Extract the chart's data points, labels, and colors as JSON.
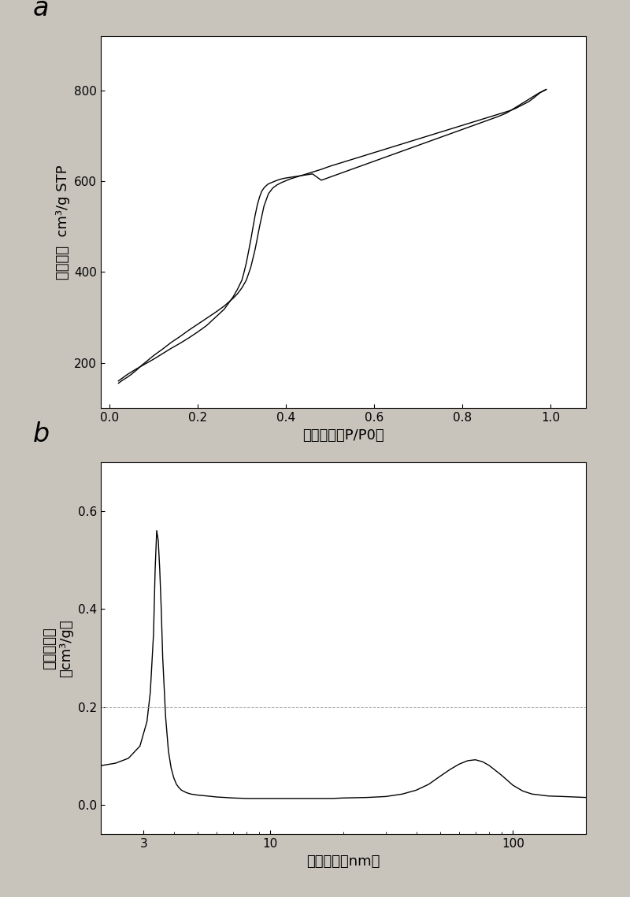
{
  "plot_a": {
    "label": "a",
    "xlabel": "相对压强（P/P0）",
    "ylabel": "吸附体积  cm³/g STP",
    "xlim": [
      -0.02,
      1.08
    ],
    "ylim": [
      100,
      920
    ],
    "yticks": [
      200,
      400,
      600,
      800
    ],
    "xticks": [
      0.0,
      0.2,
      0.4,
      0.6,
      0.8,
      1.0
    ],
    "adsorption_x": [
      0.02,
      0.03,
      0.04,
      0.05,
      0.06,
      0.07,
      0.08,
      0.09,
      0.1,
      0.12,
      0.14,
      0.16,
      0.18,
      0.2,
      0.22,
      0.24,
      0.26,
      0.28,
      0.29,
      0.3,
      0.31,
      0.32,
      0.33,
      0.34,
      0.35,
      0.36,
      0.37,
      0.38,
      0.39,
      0.4,
      0.41,
      0.42,
      0.43,
      0.44,
      0.45,
      0.46,
      0.48,
      0.5,
      0.52,
      0.54,
      0.56,
      0.58,
      0.6,
      0.62,
      0.64,
      0.66,
      0.68,
      0.7,
      0.72,
      0.74,
      0.76,
      0.78,
      0.8,
      0.82,
      0.84,
      0.86,
      0.88,
      0.9,
      0.91,
      0.92,
      0.93,
      0.94,
      0.95,
      0.96,
      0.97,
      0.975,
      0.98,
      0.985,
      0.99
    ],
    "adsorption_y": [
      155,
      162,
      168,
      175,
      183,
      192,
      200,
      208,
      216,
      230,
      245,
      258,
      272,
      285,
      298,
      311,
      325,
      342,
      352,
      365,
      382,
      410,
      450,
      500,
      545,
      572,
      585,
      592,
      597,
      601,
      605,
      608,
      611,
      614,
      617,
      620,
      626,
      633,
      639,
      645,
      651,
      657,
      663,
      669,
      675,
      681,
      687,
      693,
      699,
      705,
      711,
      717,
      723,
      729,
      735,
      741,
      747,
      753,
      756,
      760,
      765,
      770,
      775,
      782,
      790,
      794,
      797,
      799,
      802
    ],
    "desorption_x": [
      0.99,
      0.985,
      0.98,
      0.975,
      0.97,
      0.96,
      0.95,
      0.94,
      0.93,
      0.92,
      0.91,
      0.9,
      0.88,
      0.86,
      0.84,
      0.82,
      0.8,
      0.78,
      0.76,
      0.74,
      0.72,
      0.7,
      0.68,
      0.66,
      0.64,
      0.62,
      0.6,
      0.58,
      0.56,
      0.54,
      0.52,
      0.5,
      0.48,
      0.46,
      0.44,
      0.42,
      0.4,
      0.39,
      0.38,
      0.37,
      0.36,
      0.355,
      0.35,
      0.345,
      0.34,
      0.335,
      0.33,
      0.325,
      0.32,
      0.315,
      0.31,
      0.305,
      0.3,
      0.29,
      0.28,
      0.26,
      0.24,
      0.22,
      0.2,
      0.18,
      0.16,
      0.14,
      0.12,
      0.1,
      0.08,
      0.06,
      0.04,
      0.02
    ],
    "desorption_y": [
      802,
      800,
      797,
      795,
      792,
      786,
      780,
      774,
      768,
      762,
      756,
      750,
      742,
      735,
      728,
      721,
      714,
      707,
      700,
      693,
      686,
      679,
      672,
      665,
      658,
      651,
      644,
      637,
      630,
      623,
      616,
      609,
      602,
      616,
      613,
      610,
      607,
      605,
      602,
      598,
      594,
      590,
      585,
      578,
      565,
      548,
      525,
      498,
      470,
      445,
      420,
      400,
      382,
      362,
      345,
      318,
      300,
      282,
      268,
      255,
      243,
      232,
      220,
      208,
      197,
      186,
      174,
      160
    ]
  },
  "plot_b": {
    "label": "b",
    "xlabel": "孔径大小（nm）",
    "ylabel_line1": "增加的孔容",
    "ylabel_line2": "（cm³/g）",
    "xlim_log": [
      2.0,
      200.0
    ],
    "ylim": [
      -0.06,
      0.7
    ],
    "yticks": [
      0.0,
      0.2,
      0.4,
      0.6
    ],
    "xtick_locs": [
      3,
      10,
      100
    ],
    "xtick_labels": [
      "3",
      "10",
      "100"
    ],
    "pore_x": [
      2.0,
      2.3,
      2.6,
      2.9,
      3.1,
      3.2,
      3.3,
      3.35,
      3.4,
      3.45,
      3.5,
      3.55,
      3.6,
      3.7,
      3.8,
      3.9,
      4.0,
      4.1,
      4.2,
      4.3,
      4.5,
      4.7,
      5.0,
      5.5,
      6.0,
      6.5,
      7.0,
      8.0,
      9.0,
      10.0,
      12.0,
      14.0,
      16.0,
      18.0,
      20.0,
      25.0,
      30.0,
      35.0,
      40.0,
      45.0,
      50.0,
      55.0,
      60.0,
      65.0,
      70.0,
      75.0,
      80.0,
      90.0,
      100.0,
      110.0,
      120.0,
      140.0,
      160.0,
      180.0,
      200.0
    ],
    "pore_y": [
      0.08,
      0.085,
      0.095,
      0.12,
      0.17,
      0.23,
      0.35,
      0.48,
      0.56,
      0.54,
      0.48,
      0.4,
      0.3,
      0.18,
      0.11,
      0.075,
      0.055,
      0.042,
      0.035,
      0.03,
      0.025,
      0.022,
      0.02,
      0.018,
      0.016,
      0.015,
      0.014,
      0.013,
      0.013,
      0.013,
      0.013,
      0.013,
      0.013,
      0.013,
      0.014,
      0.015,
      0.017,
      0.022,
      0.03,
      0.042,
      0.058,
      0.072,
      0.083,
      0.09,
      0.092,
      0.088,
      0.08,
      0.06,
      0.04,
      0.028,
      0.022,
      0.018,
      0.017,
      0.016,
      0.015
    ],
    "hline_y": 0.2,
    "hline_color": "#aaaaaa",
    "hline_style": "--"
  },
  "line_color": "#000000",
  "background_color": "#c8c4bc",
  "axes_bg_color": "#ffffff",
  "label_fontsize": 13,
  "tick_fontsize": 11,
  "panel_label_fontsize": 24
}
